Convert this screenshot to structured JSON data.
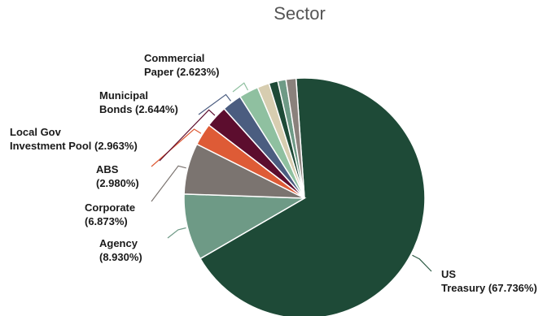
{
  "chart_data": {
    "type": "pie",
    "title": "Sector",
    "slices": [
      {
        "name": "US Treasury",
        "label_lines": [
          "US",
          "Treasury (67.736%)"
        ],
        "value": 67.736,
        "color": "#1e4a37",
        "leader": "#2f5c47"
      },
      {
        "name": "Agency",
        "label_lines": [
          "Agency",
          "(8.930%)"
        ],
        "value": 8.93,
        "color": "#6e9a86",
        "leader": "#6e9a86"
      },
      {
        "name": "Corporate",
        "label_lines": [
          "Corporate",
          "(6.873%)"
        ],
        "value": 6.873,
        "color": "#7b7470",
        "leader": "#7b7470"
      },
      {
        "name": "ABS",
        "label_lines": [
          "ABS",
          "(2.980%)"
        ],
        "value": 2.98,
        "color": "#de5b36",
        "leader": "#de5b36"
      },
      {
        "name": "Local Gov Investment Pool",
        "label_lines": [
          "Local Gov",
          "Investment Pool (2.963%)"
        ],
        "value": 2.963,
        "color": "#5c0d2e",
        "leader": "#5c0d2e"
      },
      {
        "name": "Municipal Bonds",
        "label_lines": [
          "Municipal",
          "Bonds (2.644%)"
        ],
        "value": 2.644,
        "color": "#4b5d80",
        "leader": "#4b5d80"
      },
      {
        "name": "Commercial Paper",
        "label_lines": [
          "Commercial",
          "Paper (2.623%)"
        ],
        "value": 2.623,
        "color": "#8fc0a0",
        "leader": "#8fc0a0"
      },
      {
        "name": "",
        "label_lines": [],
        "value": 1.6,
        "color": "#d7cdb0",
        "leader": ""
      },
      {
        "name": "",
        "label_lines": [],
        "value": 1.2,
        "color": "#1e4a37",
        "leader": ""
      },
      {
        "name": "",
        "label_lines": [],
        "value": 1.1,
        "color": "#6e9a86",
        "leader": ""
      },
      {
        "name": "",
        "label_lines": [],
        "value": 1.35,
        "color": "#8a817c",
        "leader": ""
      }
    ]
  }
}
